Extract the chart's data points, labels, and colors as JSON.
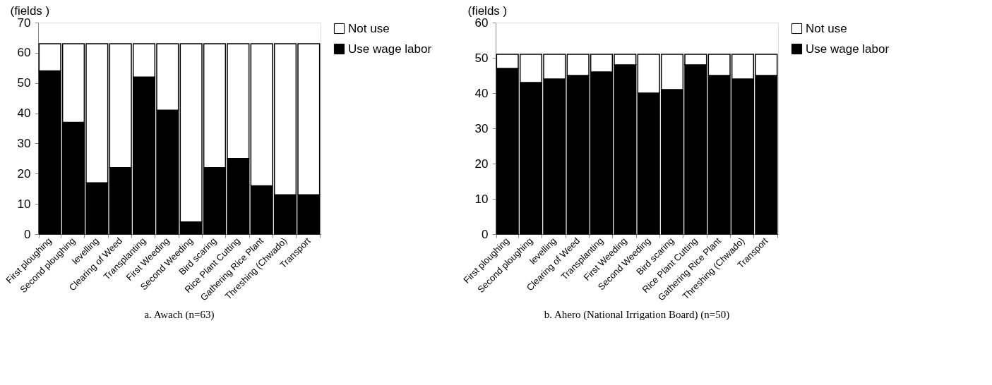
{
  "chart_data": [
    {
      "type": "bar",
      "stacked": true,
      "title": "a. Awach (n=63)",
      "ylabel": "(fields )",
      "categories": [
        "First ploughing",
        "Second ploughing",
        "levelling",
        "Clearing of Weed",
        "Transplanting",
        "First Weeding",
        "Second Weeding",
        "Bird scaring",
        "Rice Plant Cutting",
        "Gathering Rice Plant",
        "Threshing (Chwado)",
        "Transport"
      ],
      "series": [
        {
          "name": "Use wage labor",
          "color": "#000000",
          "values": [
            54,
            37,
            17,
            22,
            52,
            41,
            4,
            22,
            25,
            16,
            13,
            13
          ]
        },
        {
          "name": "Not use",
          "color": "#ffffff",
          "values": [
            9,
            26,
            46,
            41,
            11,
            22,
            59,
            41,
            38,
            47,
            50,
            50
          ]
        }
      ],
      "ylim": [
        0,
        70
      ],
      "yticks": [
        0,
        10,
        20,
        30,
        40,
        50,
        60,
        70
      ],
      "grid": false,
      "legend": "right"
    },
    {
      "type": "bar",
      "stacked": true,
      "title": "b. Ahero (National Irrigation Board) (n=50)",
      "ylabel": "(fields )",
      "categories": [
        "First ploughing",
        "Second ploughing",
        "levelling",
        "Clearing of Weed",
        "Transplanting",
        "First Weeding",
        "Second Weeding",
        "Bird scaring",
        "Rice Plant Cutting",
        "Gathering Rice Plant",
        "Threshing (Chwado)",
        "Transport"
      ],
      "series": [
        {
          "name": "Use wage labor",
          "color": "#000000",
          "values": [
            47,
            43,
            44,
            45,
            46,
            48,
            40,
            41,
            48,
            45,
            44,
            45
          ]
        },
        {
          "name": "Not use",
          "color": "#ffffff",
          "values": [
            4,
            8,
            7,
            6,
            5,
            3,
            11,
            10,
            3,
            6,
            7,
            6
          ]
        }
      ],
      "ylim": [
        0,
        60
      ],
      "yticks": [
        0,
        10,
        20,
        30,
        40,
        50,
        60
      ],
      "grid": false,
      "legend": "right"
    }
  ]
}
